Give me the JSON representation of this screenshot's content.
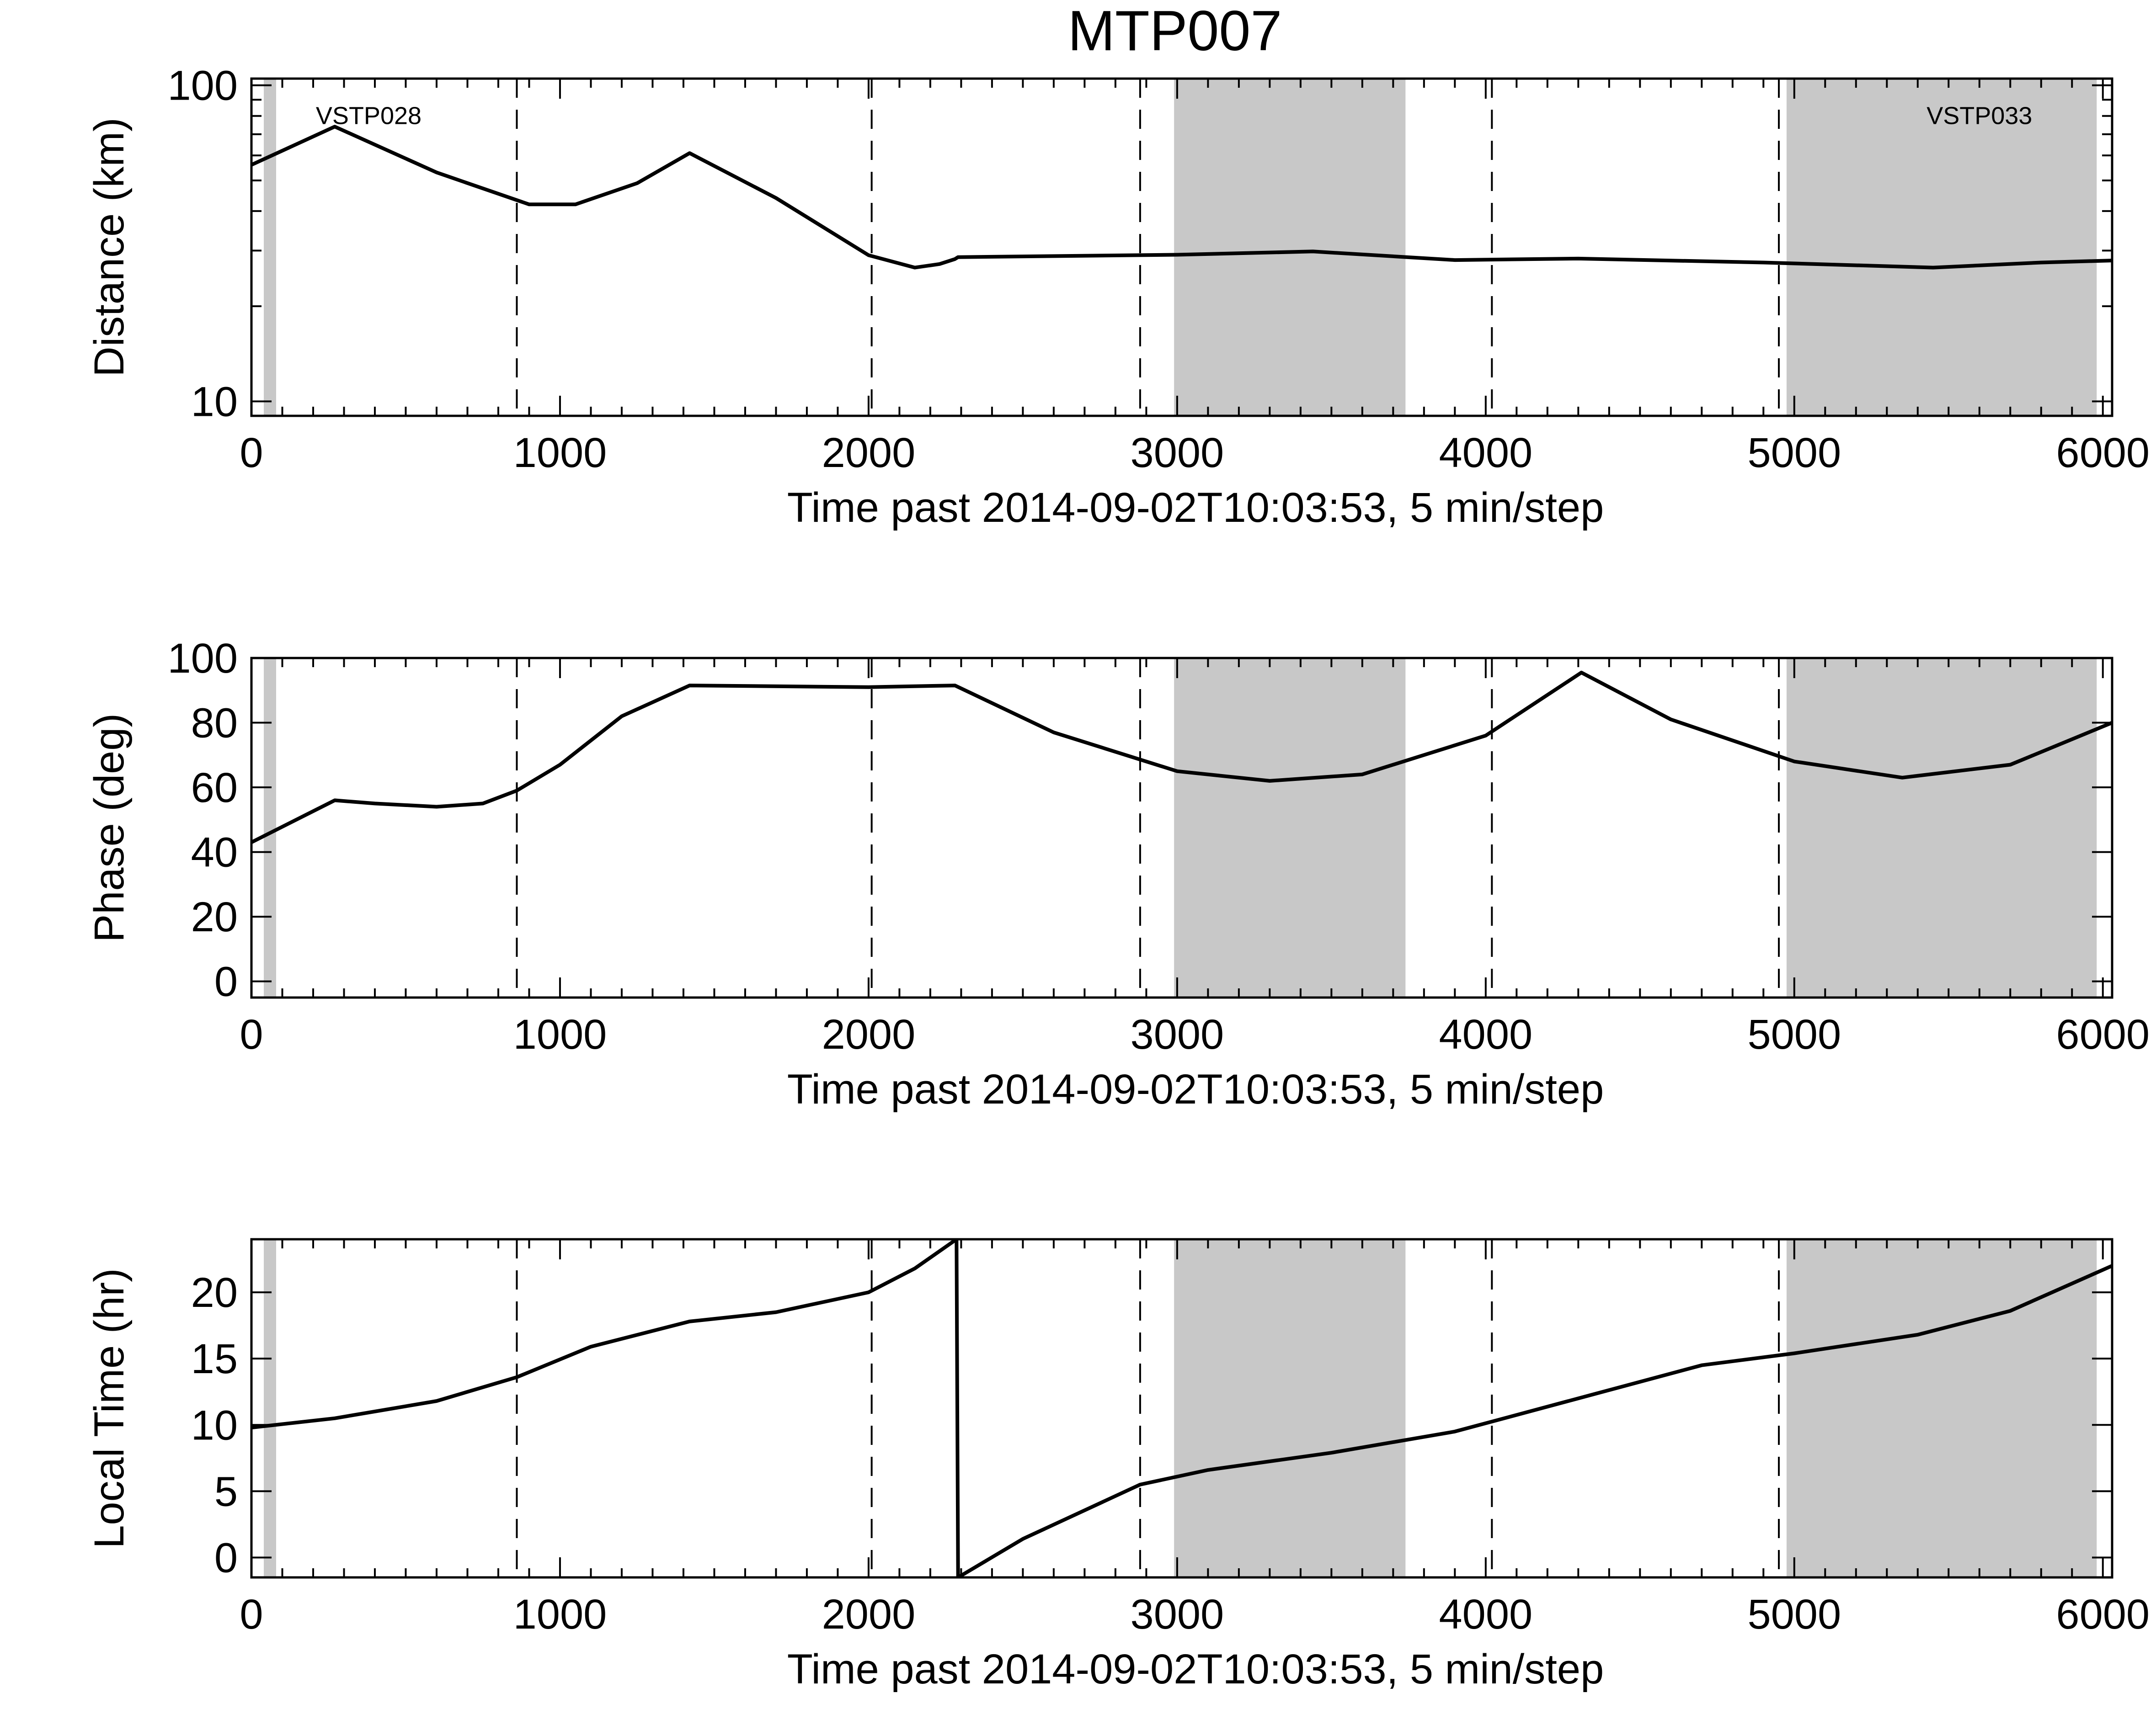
{
  "figure_title": "MTP007",
  "colors": {
    "line": "#000000",
    "shade": "#c8c8c8",
    "background": "#ffffff",
    "frame": "#000000"
  },
  "chart_data": [
    {
      "type": "line",
      "title": "MTP007",
      "xlabel": "Time past 2014-09-02T10:03:53, 5 min/step",
      "ylabel": "Distance (km)",
      "yscale": "log",
      "xlim": [
        0,
        6030
      ],
      "ylim": [
        9,
        105
      ],
      "xticks": [
        0,
        1000,
        2000,
        3000,
        4000,
        5000,
        6000
      ],
      "xtick_labels": [
        "0",
        "1000",
        "2000",
        "3000",
        "4000",
        "5000",
        "6000"
      ],
      "yticks": [
        10,
        100
      ],
      "ytick_labels": [
        "10",
        "100"
      ],
      "y_minor": [
        20,
        30,
        40,
        50,
        60,
        70,
        80,
        90
      ],
      "shaded_x_ranges": [
        [
          40,
          80
        ],
        [
          2990,
          3740
        ],
        [
          4975,
          5980
        ]
      ],
      "dashed_x": [
        860,
        2010,
        2880,
        4020,
        4950
      ],
      "annotations": [
        {
          "text": "VSTP028",
          "x": 380,
          "y": 80
        },
        {
          "text": "VSTP033",
          "x": 5600,
          "y": 80
        }
      ],
      "series": [
        {
          "name": "Distance",
          "x": [
            0,
            270,
            600,
            900,
            1050,
            1250,
            1420,
            1700,
            2000,
            2150,
            2230,
            2280,
            2290,
            3000,
            3440,
            3900,
            4300,
            4900,
            5450,
            5800,
            6030
          ],
          "y": [
            56,
            74,
            53,
            42,
            42,
            49,
            61,
            44,
            29,
            26.5,
            27.2,
            28.2,
            28.6,
            29.1,
            29.8,
            28,
            28.3,
            27.5,
            26.5,
            27.5,
            27.9
          ]
        }
      ]
    },
    {
      "type": "line",
      "xlabel": "Time past 2014-09-02T10:03:53, 5 min/step",
      "ylabel": "Phase (deg)",
      "xlim": [
        0,
        6030
      ],
      "ylim": [
        -5,
        100
      ],
      "xticks": [
        0,
        1000,
        2000,
        3000,
        4000,
        5000,
        6000
      ],
      "xtick_labels": [
        "0",
        "1000",
        "2000",
        "3000",
        "4000",
        "5000",
        "6000"
      ],
      "yticks": [
        0,
        20,
        40,
        60,
        80,
        100
      ],
      "ytick_labels": [
        "0",
        "20",
        "40",
        "60",
        "80",
        "100"
      ],
      "shaded_x_ranges": [
        [
          40,
          80
        ],
        [
          2990,
          3740
        ],
        [
          4975,
          5980
        ]
      ],
      "dashed_x": [
        860,
        2010,
        2880,
        4020,
        4950
      ],
      "series": [
        {
          "name": "Phase",
          "x": [
            0,
            270,
            400,
            600,
            750,
            860,
            1000,
            1200,
            1420,
            2000,
            2280,
            2600,
            3000,
            3300,
            3600,
            4000,
            4310,
            4600,
            5000,
            5350,
            5700,
            6030
          ],
          "y": [
            43,
            56,
            55,
            54,
            55,
            59,
            67,
            82,
            91.5,
            91,
            91.5,
            77,
            65,
            62,
            64,
            76,
            95.5,
            81,
            68,
            63,
            67,
            80
          ]
        }
      ]
    },
    {
      "type": "line",
      "xlabel": "Time past 2014-09-02T10:03:53, 5 min/step",
      "ylabel": "Local Time (hr)",
      "xlim": [
        0,
        6030
      ],
      "ylim": [
        -1.5,
        24
      ],
      "xticks": [
        0,
        1000,
        2000,
        3000,
        4000,
        5000,
        6000
      ],
      "xtick_labels": [
        "0",
        "1000",
        "2000",
        "3000",
        "4000",
        "5000",
        "6000"
      ],
      "yticks": [
        0,
        5,
        10,
        15,
        20
      ],
      "ytick_labels": [
        "0",
        "5",
        "10",
        "15",
        "20"
      ],
      "shaded_x_ranges": [
        [
          40,
          80
        ],
        [
          2990,
          3740
        ],
        [
          4975,
          5980
        ]
      ],
      "dashed_x": [
        860,
        2010,
        2880,
        4020,
        4950
      ],
      "series": [
        {
          "name": "Local Time",
          "x": [
            0,
            270,
            600,
            860,
            1100,
            1420,
            1700,
            2000,
            2150,
            2285,
            2290,
            2500,
            2880,
            3100,
            3500,
            3900,
            4300,
            4700,
            5000,
            5400,
            5700,
            6030
          ],
          "y": [
            9.8,
            10.5,
            11.8,
            13.6,
            15.9,
            17.8,
            18.5,
            20,
            21.8,
            24,
            -1.5,
            1.4,
            5.5,
            6.6,
            7.9,
            9.5,
            12,
            14.5,
            15.4,
            16.8,
            18.6,
            22
          ]
        }
      ]
    }
  ]
}
